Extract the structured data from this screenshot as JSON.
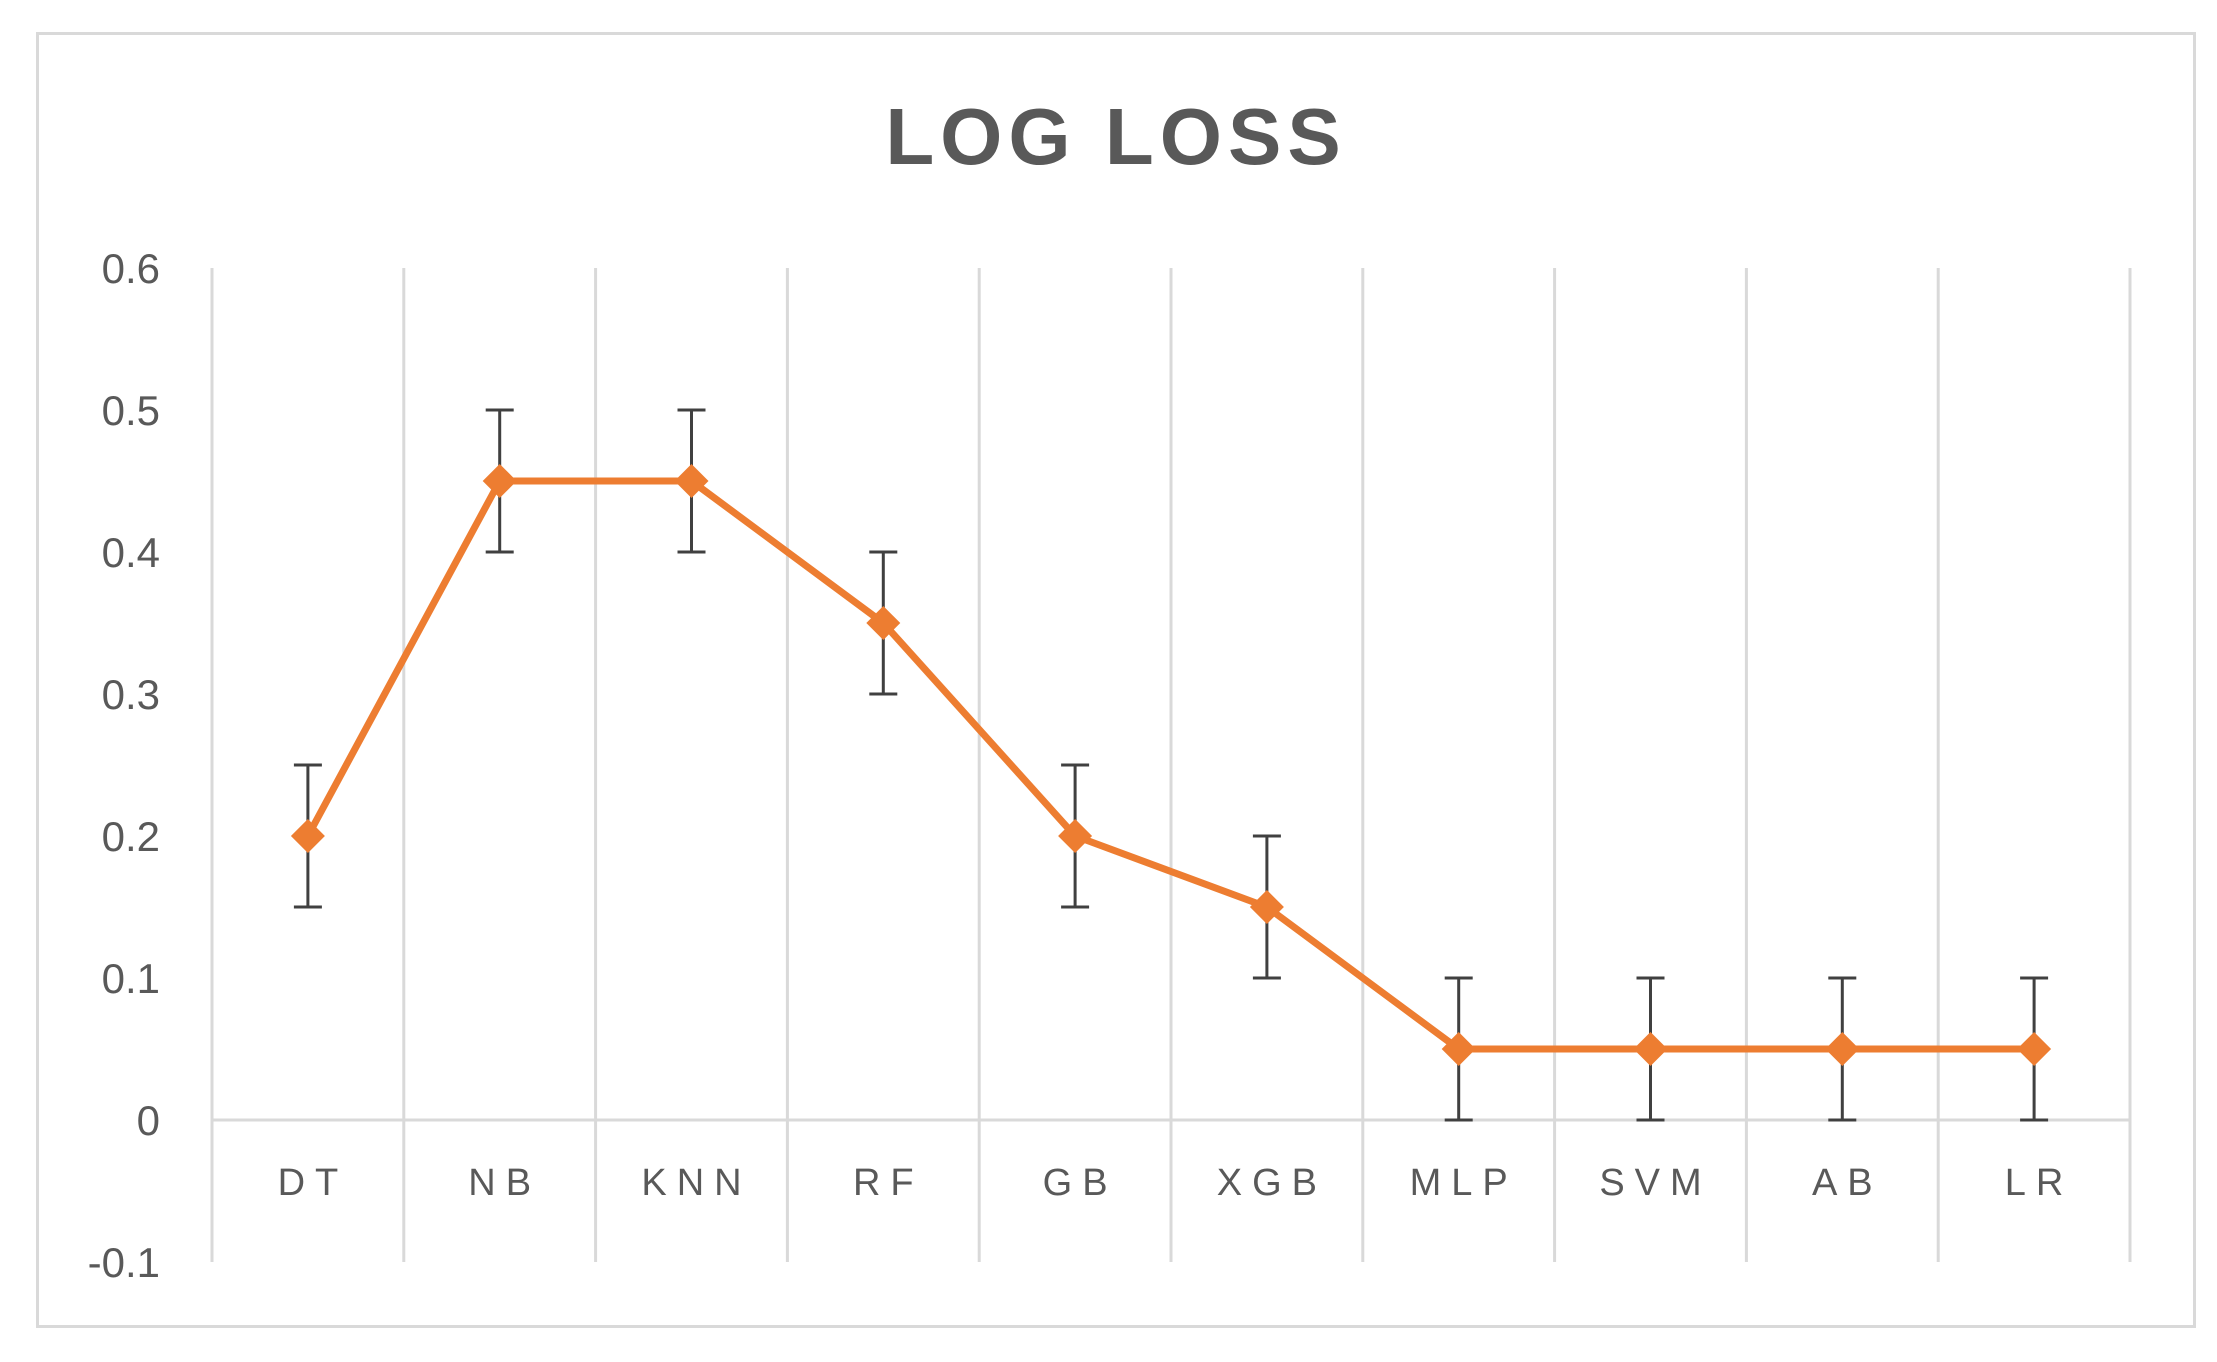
{
  "chart_data": {
    "type": "line",
    "title": "LOG LOSS",
    "xlabel": "",
    "ylabel": "",
    "categories": [
      "DT",
      "NB",
      "KNN",
      "RF",
      "GB",
      "XGB",
      "MLP",
      "SVM",
      "AB",
      "LR"
    ],
    "series": [
      {
        "values": [
          0.2,
          0.45,
          0.45,
          0.35,
          0.2,
          0.15,
          0.05,
          0.05,
          0.05,
          0.05
        ],
        "error": 0.05,
        "color": "#ed7d31",
        "marker": "diamond"
      }
    ],
    "ylim": [
      -0.1,
      0.6
    ],
    "yticks": [
      "-0.1",
      "0",
      "0.1",
      "0.2",
      "0.3",
      "0.4",
      "0.5",
      "0.6"
    ],
    "grid": "vertical",
    "legend": "none",
    "colors": {
      "gridline": "#d9d9d9",
      "axis": "#d9d9d9",
      "errorbar": "#404040",
      "text": "#595959"
    }
  }
}
